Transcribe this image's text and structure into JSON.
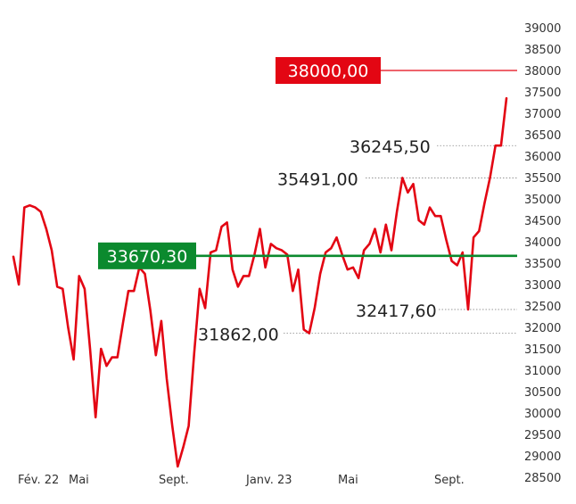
{
  "chart_data": {
    "type": "line",
    "title": "",
    "xlabel": "",
    "ylabel": "",
    "ylim": [
      28500,
      39000
    ],
    "yticks": [
      39000,
      38500,
      38000,
      37500,
      37000,
      36500,
      36000,
      35500,
      35000,
      34500,
      34000,
      33500,
      33000,
      32500,
      32000,
      31500,
      31000,
      30500,
      30000,
      29500,
      29000,
      28500
    ],
    "xticks": [
      "Fév. 22",
      "Mai",
      "Sept.",
      "Janv. 23",
      "Mai",
      "Sept."
    ],
    "series": [
      {
        "name": "",
        "color": "#e30613",
        "values": [
          33650,
          33000,
          34800,
          34850,
          34800,
          34700,
          34300,
          33800,
          32950,
          32900,
          32000,
          31250,
          33200,
          32900,
          31500,
          29900,
          31500,
          31100,
          31300,
          31300,
          32100,
          32850,
          32850,
          33400,
          33250,
          32400,
          31350,
          32150,
          30800,
          29700,
          28750,
          29200,
          29700,
          31400,
          32900,
          32450,
          33750,
          33800,
          34350,
          34450,
          33350,
          32950,
          33200,
          33200,
          33700,
          34300,
          33400,
          33950,
          33850,
          33800,
          33700,
          32850,
          33350,
          31950,
          31862,
          32450,
          33250,
          33750,
          33850,
          34100,
          33700,
          33350,
          33400,
          33150,
          33800,
          33950,
          34300,
          33750,
          34400,
          33800,
          34700,
          35491,
          35150,
          35350,
          34500,
          34400,
          34800,
          34600,
          34600,
          34050,
          33550,
          33450,
          33750,
          32418,
          34100,
          34250,
          34900,
          35500,
          36245,
          36245,
          37350
        ]
      }
    ],
    "reference_lines": [
      {
        "value": 38000,
        "label": "38000,00",
        "color": "#e30613"
      },
      {
        "value": 33670.3,
        "label": "33670,30",
        "color": "#0b8a2e"
      }
    ],
    "annotations": [
      {
        "label": "36245,50",
        "value": 36245.5
      },
      {
        "label": "35491,00",
        "value": 35491
      },
      {
        "label": "32417,60",
        "value": 32417.6
      },
      {
        "label": "31862,00",
        "value": 31862
      }
    ],
    "grid": false,
    "legend": "none"
  }
}
